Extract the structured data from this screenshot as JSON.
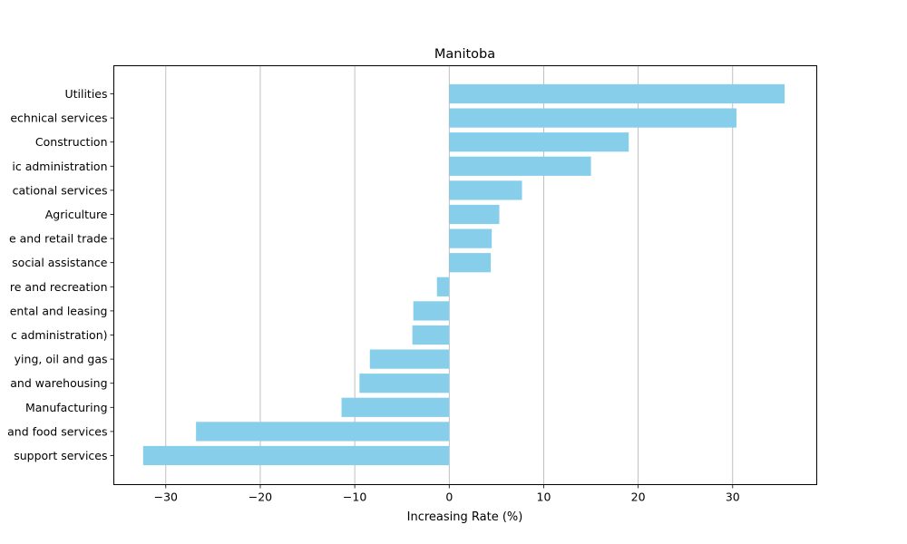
{
  "chart_data": {
    "type": "bar",
    "orientation": "horizontal",
    "title": "Manitoba",
    "xlabel": "Increasing Rate (%)",
    "ylabel": "",
    "xlim": [
      -35.5,
      38.9
    ],
    "xticks": [
      -30,
      -20,
      -10,
      0,
      10,
      20,
      30
    ],
    "xtick_labels": [
      "−30",
      "−20",
      "−10",
      "0",
      "10",
      "20",
      "30"
    ],
    "grid": "vertical",
    "bar_color": "#87ceeb",
    "categories": [
      "Utilities",
      "echnical services",
      "Construction",
      "ic administration",
      "cational services",
      "Agriculture",
      "e and retail trade",
      "social assistance",
      "re and recreation",
      "ental and leasing",
      "c administration)",
      "ying, oil and gas",
      "and warehousing",
      "Manufacturing",
      "and food services",
      "support services"
    ],
    "values": [
      35.5,
      30.4,
      19.0,
      15.0,
      7.7,
      5.3,
      4.5,
      4.4,
      -1.3,
      -3.8,
      -3.9,
      -8.4,
      -9.5,
      -11.4,
      -26.8,
      -32.4
    ]
  }
}
